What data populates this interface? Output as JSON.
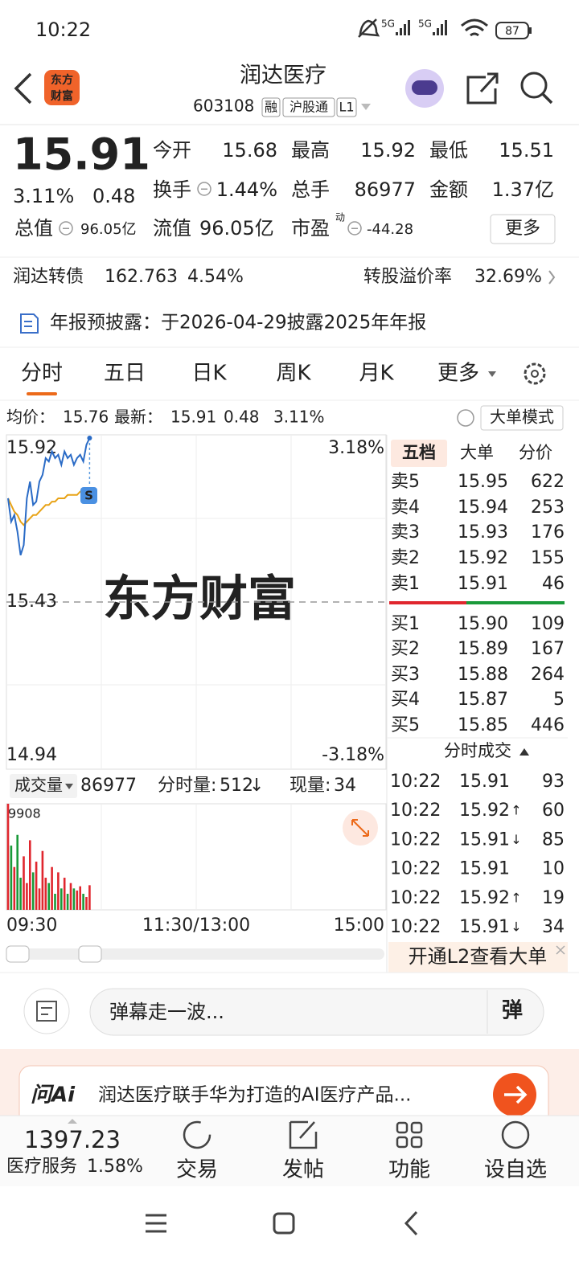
{
  "status_bar": {
    "time": "10:22",
    "signal_1": "5G",
    "signal_2": "5G",
    "battery": "87"
  },
  "header": {
    "logo": [
      "东方",
      "财富"
    ],
    "name": "润达医疗",
    "code": "603108",
    "tags": [
      "融",
      "沪股通",
      "L1"
    ]
  },
  "quote": {
    "price": "15.91",
    "change_pct": "3.11%",
    "change": "0.48",
    "fields": [
      {
        "label": "今开",
        "value": "15.68"
      },
      {
        "label": "最高",
        "value": "15.92"
      },
      {
        "label": "最低",
        "value": "15.51"
      },
      {
        "label": "换手",
        "value": "1.44%"
      },
      {
        "label": "总手",
        "value": "86977"
      },
      {
        "label": "金额",
        "value": "1.37亿"
      },
      {
        "label": "总值",
        "value": "96.05亿"
      },
      {
        "label": "流值",
        "value": "96.05亿"
      },
      {
        "label": "市盈",
        "value": "-44.28"
      }
    ],
    "pe_tag": "动",
    "more": "更多"
  },
  "bond": {
    "name": "润达转债",
    "price": "162.763",
    "pct": "4.54%",
    "premium_label": "转股溢价率",
    "premium": "32.69%"
  },
  "notice": "年报预披露：于2026-04-29披露2025年年报",
  "tabs": [
    "分时",
    "五日",
    "日K",
    "周K",
    "月K",
    "更多"
  ],
  "summary": {
    "avg_label": "均价：",
    "avg": "15.76",
    "last_label": "最新：",
    "last": "15.91",
    "change": "0.48",
    "change_pct": "3.11%",
    "mode": "大单模式"
  },
  "intraday": {
    "watermark": "东方财富",
    "ylim": [
      14.94,
      15.92
    ],
    "yticks": [
      14.94,
      15.43,
      15.92
    ],
    "pct_labels": [
      "-3.18%",
      "3.18%"
    ],
    "price": [
      15.74,
      15.67,
      15.69,
      15.64,
      15.57,
      15.6,
      15.74,
      15.79,
      15.72,
      15.73,
      15.79,
      15.81,
      15.86,
      15.85,
      15.88,
      15.86,
      15.87,
      15.84,
      15.88,
      15.86,
      15.87,
      15.84,
      15.86,
      15.87,
      15.85,
      15.9,
      15.92
    ],
    "average": [
      15.74,
      15.72,
      15.7,
      15.69,
      15.67,
      15.66,
      15.67,
      15.68,
      15.69,
      15.69,
      15.7,
      15.71,
      15.72,
      15.72,
      15.73,
      15.73,
      15.74,
      15.74,
      15.74,
      15.75,
      15.75,
      15.75,
      15.75,
      15.76,
      15.76,
      15.76,
      15.76
    ],
    "price_color": "#2a6bc6",
    "average_color": "#e8a317",
    "badge": "S"
  },
  "volume": {
    "label": "成交量",
    "total": "86977",
    "minute_label": "分时量:",
    "minute": "512",
    "minute_arrow": "↓",
    "now_label": "现量:",
    "now": "34",
    "ylim": [
      0,
      9908
    ],
    "yticks": [
      9908
    ],
    "values": [
      9908,
      6000,
      4000,
      7000,
      3000,
      5000,
      2500,
      6500,
      3500,
      4500,
      2000,
      5500,
      3000,
      2500,
      4000,
      1500,
      3500,
      2000,
      3000,
      1500,
      2500,
      2000,
      1800,
      2200,
      1500,
      1200,
      2300
    ]
  },
  "time_axis": [
    "09:30",
    "11:30/13:00",
    "15:00"
  ],
  "order_book": {
    "tabs": [
      "五档",
      "大单",
      "分价"
    ],
    "asks": [
      {
        "label": "卖5",
        "price": "15.95",
        "volume": "622"
      },
      {
        "label": "卖4",
        "price": "15.94",
        "volume": "253"
      },
      {
        "label": "卖3",
        "price": "15.93",
        "volume": "176"
      },
      {
        "label": "卖2",
        "price": "15.92",
        "volume": "155"
      },
      {
        "label": "卖1",
        "price": "15.91",
        "volume": "46"
      }
    ],
    "bids": [
      {
        "label": "买1",
        "price": "15.90",
        "volume": "109"
      },
      {
        "label": "买2",
        "price": "15.89",
        "volume": "167"
      },
      {
        "label": "买3",
        "price": "15.88",
        "volume": "264"
      },
      {
        "label": "买4",
        "price": "15.87",
        "volume": "5"
      },
      {
        "label": "买5",
        "price": "15.85",
        "volume": "446"
      }
    ]
  },
  "trades": {
    "title": "分时成交",
    "rows": [
      {
        "time": "10:22",
        "price": "15.91",
        "volume": "93",
        "color": "#1a9a3a"
      },
      {
        "time": "10:22",
        "price": "15.92",
        "arrow": "↑",
        "volume": "60",
        "color": "#e0262e"
      },
      {
        "time": "10:22",
        "price": "15.91",
        "arrow": "↓",
        "volume": "85",
        "color": "#1a9a3a"
      },
      {
        "time": "10:22",
        "price": "15.91",
        "volume": "10",
        "color": "#1a9a3a"
      },
      {
        "time": "10:22",
        "price": "15.92",
        "arrow": "↑",
        "volume": "19",
        "color": "#e0262e"
      },
      {
        "time": "10:22",
        "price": "15.91",
        "arrow": "↓",
        "volume": "34",
        "color": "#1a9a3a"
      }
    ]
  },
  "l2": "开通L2查看大单",
  "comment": {
    "placeholder": "弹幕走一波...",
    "button": "弹"
  },
  "ai": {
    "logo": "问Ai",
    "text": "润达医疗联手华为打造的AI医疗产品..."
  },
  "bottom": {
    "index_value": "1397.23",
    "index_name": "医疗服务",
    "index_pct": "1.58%",
    "items": [
      "交易",
      "发帖",
      "功能",
      "设自选"
    ]
  }
}
